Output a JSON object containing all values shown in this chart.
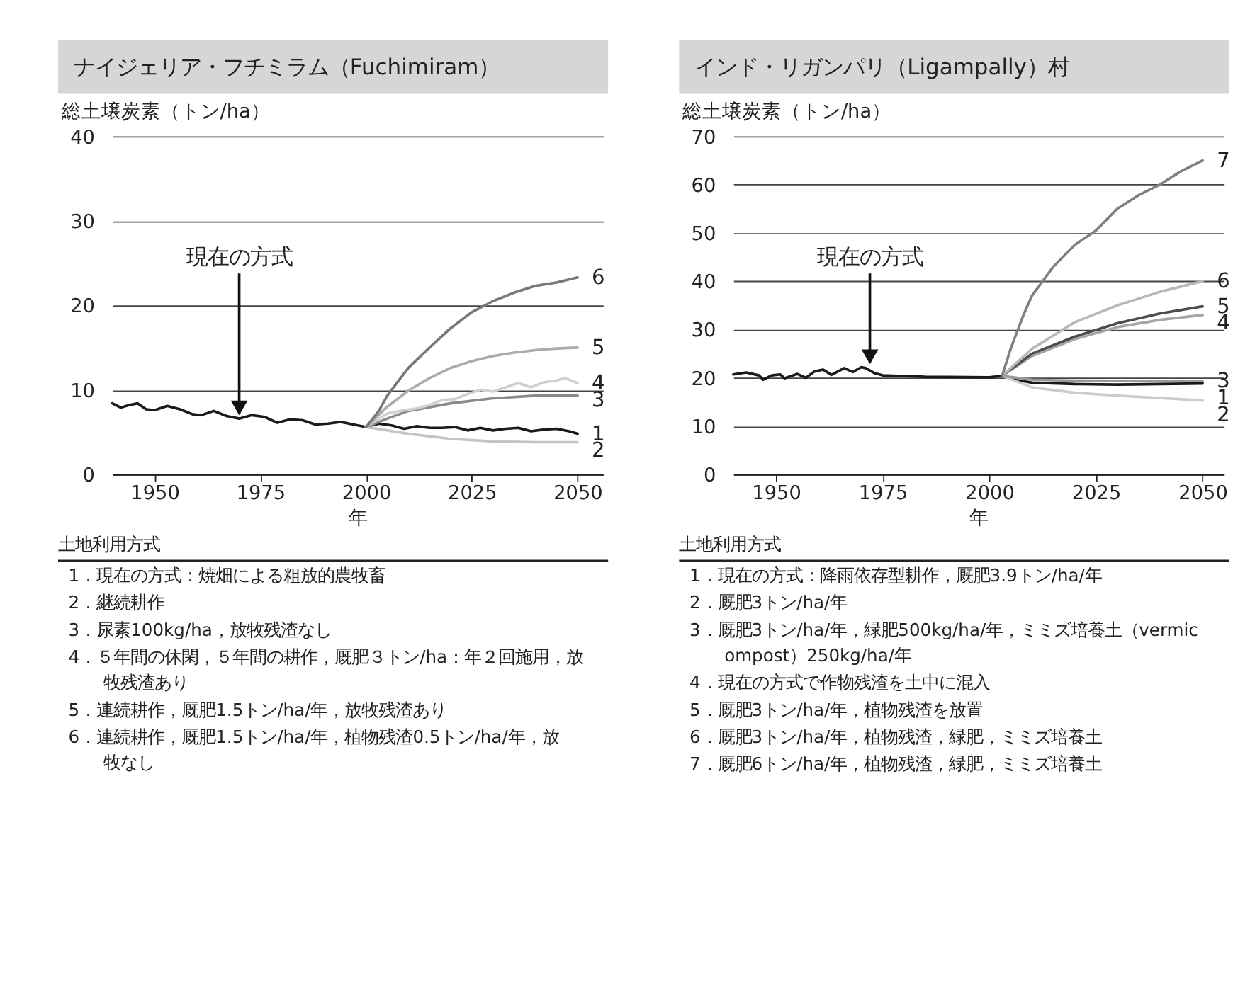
{
  "chart_data": [
    {
      "type": "line",
      "title": "ナイジェリア・フチミラム（Fuchimiram）",
      "ylabel": "総土壌炭素（トン/ha）",
      "xlabel": "年",
      "xlim": [
        1940,
        2056
      ],
      "xticks": [
        1950,
        1975,
        2000,
        2025,
        2050
      ],
      "ylim": [
        0,
        40
      ],
      "yticks": [
        0,
        10,
        20,
        30,
        40
      ],
      "grid": "y",
      "line_style": "solid",
      "marker": "none",
      "series": [
        {
          "name": "1",
          "color": "#1a1a1a",
          "x": [
            1940,
            1942,
            1944,
            1946,
            1948,
            1950,
            1953,
            1956,
            1959,
            1961,
            1964,
            1967,
            1970,
            1973,
            1976,
            1979,
            1982,
            1985,
            1988,
            1991,
            1994,
            1997,
            2000,
            2003,
            2006,
            2009,
            2012,
            2015,
            2018,
            2021,
            2024,
            2027,
            2030,
            2033,
            2036,
            2039,
            2042,
            2045,
            2048,
            2050
          ],
          "values": [
            8.4,
            7.9,
            8.2,
            8.4,
            7.7,
            7.6,
            8.1,
            7.7,
            7.1,
            7.0,
            7.5,
            6.9,
            6.6,
            7.0,
            6.8,
            6.1,
            6.5,
            6.4,
            5.9,
            6.0,
            6.2,
            5.9,
            5.6,
            6.0,
            5.8,
            5.4,
            5.7,
            5.5,
            5.5,
            5.6,
            5.2,
            5.5,
            5.2,
            5.4,
            5.5,
            5.1,
            5.3,
            5.4,
            5.1,
            4.8
          ]
        },
        {
          "name": "2",
          "color": "#c4c4c4",
          "x": [
            2000,
            2010,
            2020,
            2030,
            2040,
            2050
          ],
          "values": [
            5.6,
            4.8,
            4.2,
            3.9,
            3.8,
            3.8
          ]
        },
        {
          "name": "3",
          "color": "#8a8a8a",
          "x": [
            2000,
            2005,
            2010,
            2020,
            2030,
            2040,
            2050
          ],
          "values": [
            5.6,
            6.6,
            7.5,
            8.4,
            9.0,
            9.3,
            9.3
          ]
        },
        {
          "name": "4",
          "color": "#d0d0d0",
          "x": [
            2000,
            2005,
            2008,
            2012,
            2015,
            2018,
            2021,
            2024,
            2027,
            2030,
            2033,
            2036,
            2039,
            2042,
            2045,
            2047,
            2050
          ],
          "values": [
            5.6,
            7.2,
            7.5,
            7.8,
            8.2,
            8.8,
            8.9,
            9.5,
            10.0,
            9.8,
            10.3,
            10.8,
            10.3,
            10.9,
            11.1,
            11.4,
            10.8
          ]
        },
        {
          "name": "5",
          "color": "#ababab",
          "x": [
            2000,
            2005,
            2010,
            2015,
            2020,
            2025,
            2030,
            2035,
            2040,
            2045,
            2050
          ],
          "values": [
            5.6,
            8.0,
            9.9,
            11.4,
            12.6,
            13.4,
            14.0,
            14.4,
            14.7,
            14.9,
            15.0
          ]
        },
        {
          "name": "6",
          "color": "#787878",
          "x": [
            2000,
            2003,
            2005,
            2008,
            2010,
            2015,
            2020,
            2025,
            2030,
            2035,
            2040,
            2045,
            2050
          ],
          "values": [
            5.6,
            7.5,
            9.3,
            11.3,
            12.6,
            15.0,
            17.3,
            19.2,
            20.5,
            21.5,
            22.3,
            22.7,
            23.3
          ]
        }
      ],
      "annotations": [
        {
          "text": "現在の方式",
          "x": 1970,
          "y": 6.8
        },
        "土地利用方式",
        "1．現在の方式：焼畑による粗放的農牧畜",
        "2．継続耕作",
        "3．尿素100kg/ha，放牧残渣なし",
        "4．５年間の休閑，５年間の耕作，厩肥３トン/ha：年２回施用，放牧残渣あり",
        "5．連続耕作，厩肥1.5トン/ha/年，放牧残渣あり",
        "6．連続耕作，厩肥1.5トン/ha/年，植物残渣0.5トン/ha/年，放牧なし"
      ]
    },
    {
      "type": "line",
      "title": "インド・リガンパリ（Ligampally）村",
      "ylabel": "総土壌炭素（トン/ha）",
      "xlabel": "年",
      "xlim": [
        1940,
        2055
      ],
      "xticks": [
        1950,
        1975,
        2000,
        2025,
        2050
      ],
      "ylim": [
        0,
        70
      ],
      "yticks": [
        0,
        10,
        20,
        30,
        40,
        50,
        60,
        70
      ],
      "grid": "y",
      "line_style": "solid",
      "marker": "none",
      "series": [
        {
          "name": "1",
          "color": "#1a1a1a",
          "x": [
            1940,
            1943,
            1946,
            1947,
            1949,
            1951,
            1952,
            1955,
            1957,
            1959,
            1961,
            1963,
            1966,
            1968,
            1970,
            1971,
            1973,
            1975,
            1985,
            2000,
            2003,
            2006,
            2010,
            2020,
            2030,
            2050
          ],
          "values": [
            20.7,
            21.1,
            20.5,
            19.6,
            20.5,
            20.7,
            19.9,
            20.8,
            20.0,
            21.3,
            21.7,
            20.6,
            22.0,
            21.2,
            22.2,
            22.0,
            21.0,
            20.5,
            20.2,
            20.1,
            20.4,
            19.6,
            19.0,
            18.7,
            18.6,
            18.8
          ]
        },
        {
          "name": "2",
          "color": "#cccccc",
          "x": [
            2003,
            2010,
            2020,
            2030,
            2040,
            2050
          ],
          "values": [
            20.4,
            18.0,
            16.9,
            16.3,
            15.8,
            15.3
          ]
        },
        {
          "name": "3",
          "color": "#999999",
          "x": [
            2003,
            2010,
            2020,
            2050
          ],
          "values": [
            20.4,
            19.6,
            19.4,
            19.3
          ]
        },
        {
          "name": "4",
          "color": "#a6a6a6",
          "x": [
            2003,
            2010,
            2020,
            2030,
            2040,
            2050
          ],
          "values": [
            20.4,
            24.5,
            28.0,
            30.5,
            32.0,
            33.0
          ]
        },
        {
          "name": "5",
          "color": "#4d4d4d",
          "x": [
            2003,
            2010,
            2020,
            2030,
            2040,
            2050
          ],
          "values": [
            20.4,
            25.0,
            28.5,
            31.3,
            33.3,
            34.8
          ]
        },
        {
          "name": "6",
          "color": "#b8b8b8",
          "x": [
            2003,
            2010,
            2020,
            2030,
            2040,
            2050
          ],
          "values": [
            20.4,
            26.0,
            31.5,
            35.0,
            37.8,
            40.0
          ]
        },
        {
          "name": "7",
          "color": "#808080",
          "x": [
            2003,
            2005,
            2008,
            2010,
            2015,
            2020,
            2025,
            2030,
            2035,
            2040,
            2045,
            2050
          ],
          "values": [
            20.4,
            26.0,
            33.0,
            37.0,
            43.0,
            47.5,
            50.5,
            55.0,
            57.8,
            60.0,
            62.8,
            65.0
          ]
        }
      ],
      "annotations": [
        {
          "text": "現在の方式",
          "x": 1972,
          "y": 22.5
        },
        "土地利用方式",
        "1．現在の方式：降雨依存型耕作，厩肥3.9トン/ha/年",
        "2．厩肥3トン/ha/年",
        "3．厩肥3トン/ha/年，緑肥500kg/ha/年，ミミズ培養土（vermicompost）250kg/ha/年",
        "4．現在の方式で作物残渣を土中に混入",
        "5．厩肥3トン/ha/年，植物残渣を放置",
        "6．厩肥3トン/ha/年，植物残渣，緑肥，ミミズ培養土",
        "7．厩肥6トン/ha/年，植物残渣，緑肥，ミミズ培養土"
      ]
    }
  ]
}
